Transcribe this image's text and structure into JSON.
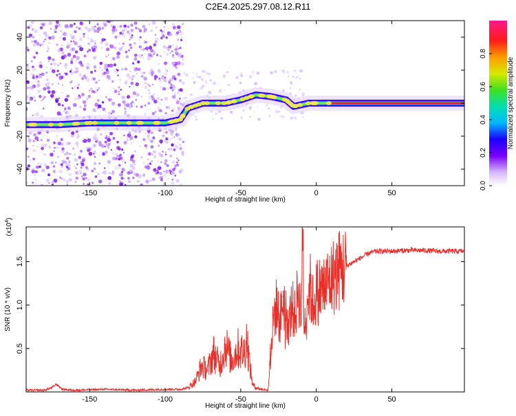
{
  "title": "C2E4.2025.297.08.12.R11",
  "chart_data": [
    {
      "type": "heatmap",
      "xlabel": "Height of straight line (km)",
      "ylabel": "Frequency (Hz)",
      "xlim": [
        -192,
        98
      ],
      "ylim": [
        -50,
        50
      ],
      "xticks": [
        -150,
        -100,
        -50,
        0,
        50
      ],
      "yticks": [
        -40,
        -20,
        0,
        20,
        40
      ],
      "colorbar": {
        "label": "Normalized spectral amplitude",
        "range": [
          0,
          1
        ],
        "ticks": [
          "0.0",
          "0.2",
          "0.4",
          "0.6",
          "0.8"
        ],
        "tick_values": [
          0.0,
          0.2,
          0.4,
          0.6,
          0.8
        ]
      },
      "ridge": [
        {
          "x": -192,
          "y": -13
        },
        {
          "x": -170,
          "y": -13
        },
        {
          "x": -150,
          "y": -12
        },
        {
          "x": -120,
          "y": -12
        },
        {
          "x": -100,
          "y": -12
        },
        {
          "x": -90,
          "y": -10
        },
        {
          "x": -85,
          "y": -3
        },
        {
          "x": -75,
          "y": 0
        },
        {
          "x": -60,
          "y": 0
        },
        {
          "x": -50,
          "y": 2
        },
        {
          "x": -40,
          "y": 5
        },
        {
          "x": -30,
          "y": 4
        },
        {
          "x": -20,
          "y": 2
        },
        {
          "x": -15,
          "y": -2
        },
        {
          "x": -5,
          "y": 0
        },
        {
          "x": 10,
          "y": 0
        },
        {
          "x": 20,
          "y": 0
        },
        {
          "x": 98,
          "y": 0
        }
      ],
      "grid": false,
      "colors": {
        "scatter": "#9b30ff",
        "line_outer": "#3a0aff",
        "line_mid": "#2ad0c8",
        "line_inner": "#e81e1e"
      }
    },
    {
      "type": "line",
      "xlabel": "Height of straight line (km)",
      "ylabel": "SNR (10 * v/v)",
      "y_multiplier": "(x10",
      "y_multiplier_exp": "4",
      "y_multiplier_close": ")",
      "xlim": [
        -192,
        98
      ],
      "ylim": [
        0,
        1.9
      ],
      "xticks": [
        -150,
        -100,
        -50,
        0,
        50
      ],
      "yticks": [
        0.5,
        1.0,
        1.5
      ],
      "grid": false,
      "color": "#e8302a",
      "series": [
        {
          "x": [
            -192,
            -180,
            -175,
            -172,
            -168,
            -160,
            -140,
            -120,
            -100,
            -90,
            -85,
            -80,
            -76,
            -72,
            -68,
            -64,
            -60,
            -56,
            -52,
            -48,
            -46,
            -44,
            -42,
            -40,
            -36,
            -32,
            -30,
            -28,
            -26,
            -24,
            -22,
            -20,
            -18,
            -16,
            -14,
            -12,
            -10,
            -9,
            -8,
            -6,
            -4,
            -2,
            0,
            5,
            10,
            15,
            20,
            25,
            30,
            35,
            40,
            50,
            60,
            70,
            80,
            90,
            98
          ],
          "y": [
            0.02,
            0.02,
            0.05,
            0.09,
            0.03,
            0.02,
            0.03,
            0.02,
            0.03,
            0.03,
            0.05,
            0.12,
            0.3,
            0.25,
            0.45,
            0.3,
            0.55,
            0.35,
            0.5,
            0.45,
            0.62,
            0.3,
            0.08,
            0.05,
            0.03,
            0.02,
            0.5,
            0.9,
            1.0,
            0.8,
            1.1,
            0.9,
            0.8,
            1.0,
            0.85,
            1.2,
            0.9,
            1.9,
            0.7,
            1.1,
            1.2,
            1.0,
            1.15,
            1.2,
            1.3,
            1.4,
            1.45,
            1.5,
            1.55,
            1.6,
            1.62,
            1.62,
            1.63,
            1.63,
            1.62,
            1.62,
            1.62
          ]
        }
      ]
    }
  ]
}
